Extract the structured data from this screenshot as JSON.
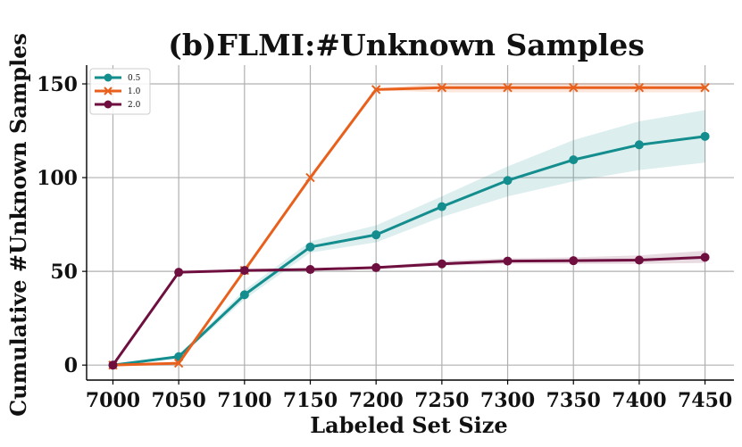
{
  "chart_data": {
    "type": "line",
    "title": "(b)FLMI:#Unknown Samples",
    "xlabel": "Labeled Set Size",
    "ylabel": "Cumulative #Unknown Samples",
    "x": [
      7000,
      7050,
      7100,
      7150,
      7200,
      7250,
      7300,
      7350,
      7400,
      7450
    ],
    "xlim": [
      6980,
      7472
    ],
    "ylim": [
      -8,
      160
    ],
    "yticks": [
      0,
      50,
      100,
      150
    ],
    "grid": true,
    "legend_position": "top-left",
    "series": [
      {
        "name": "0.5",
        "color": "#138d8d",
        "marker": "circle",
        "values": [
          0,
          4.5,
          37.5,
          63,
          69.5,
          84.5,
          98.5,
          109.5,
          117.5,
          122
        ],
        "band_low": [
          0,
          3.5,
          35,
          60,
          65.5,
          79,
          90,
          98,
          104,
          108
        ],
        "band_high": [
          0,
          5.5,
          40,
          66,
          74.5,
          90,
          106,
          120,
          130,
          136
        ]
      },
      {
        "name": "1.0",
        "color": "#e8601c",
        "marker": "x",
        "values": [
          0,
          1,
          50.5,
          100,
          147,
          148,
          148,
          148,
          148,
          148
        ],
        "band_low": [
          0,
          0.5,
          50,
          99.5,
          146.5,
          145.5,
          145.5,
          145.5,
          145.5,
          145.5
        ],
        "band_high": [
          0,
          1.5,
          51,
          100.5,
          147.5,
          150.5,
          150.5,
          150.5,
          150.5,
          150.5
        ]
      },
      {
        "name": "2.0",
        "color": "#6e0f3f",
        "marker": "circle",
        "values": [
          0,
          49.5,
          50.5,
          51,
          52,
          54,
          55.5,
          55.7,
          56,
          57.5
        ],
        "band_low": [
          0,
          49,
          50,
          50.5,
          51.5,
          53,
          54,
          54,
          54,
          54.5
        ],
        "band_high": [
          0,
          50,
          51,
          51.5,
          52.5,
          55.5,
          57,
          57.5,
          58.5,
          61
        ]
      }
    ]
  }
}
